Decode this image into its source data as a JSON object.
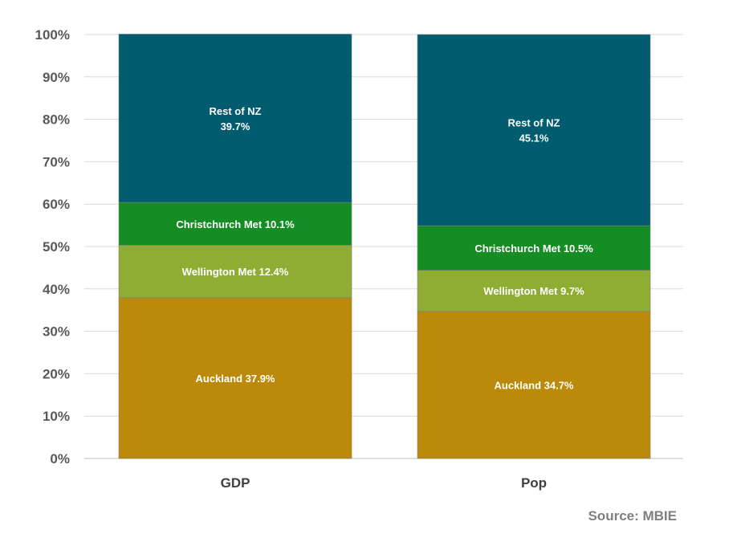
{
  "chart_data": {
    "type": "bar",
    "stacked": true,
    "categories": [
      "GDP",
      "Pop"
    ],
    "ylim": [
      0,
      100
    ],
    "yticks": [
      "0%",
      "10%",
      "20%",
      "30%",
      "40%",
      "50%",
      "60%",
      "70%",
      "80%",
      "90%",
      "100%"
    ],
    "grid": true,
    "series": [
      {
        "name": "Auckland",
        "color": "#bb8a0b",
        "values": [
          37.9,
          34.7
        ],
        "labels": [
          "Auckland 37.9%",
          "Auckland 34.7%"
        ]
      },
      {
        "name": "Wellington Met",
        "color": "#8fad33",
        "values": [
          12.4,
          9.7
        ],
        "labels": [
          "Wellington Met 12.4%",
          "Wellington Met 9.7%"
        ]
      },
      {
        "name": "Christchurch Met",
        "color": "#168c24",
        "values": [
          10.1,
          10.5
        ],
        "labels": [
          "Christchurch Met 10.1%",
          "Christchurch Met 10.5%"
        ]
      },
      {
        "name": "Rest of NZ",
        "color": "#005c6e",
        "values": [
          39.7,
          45.1
        ],
        "labels": [
          [
            "Rest of NZ",
            "39.7%"
          ],
          [
            "Rest of NZ",
            "45.1%"
          ]
        ]
      }
    ]
  },
  "source": "Source: MBIE"
}
